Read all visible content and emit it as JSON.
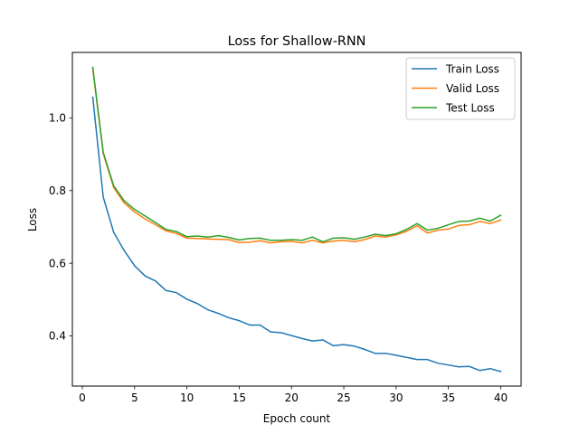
{
  "chart_data": {
    "type": "line",
    "title": "Loss for Shallow-RNN",
    "xlabel": "Epoch count",
    "ylabel": "Loss",
    "xlim": [
      -0.95,
      41.95
    ],
    "ylim": [
      0.262,
      1.18
    ],
    "xticks": [
      0,
      5,
      10,
      15,
      20,
      25,
      30,
      35,
      40
    ],
    "yticks": [
      0.4,
      0.6,
      0.8,
      1.0
    ],
    "grid": false,
    "legend_position": "top-right",
    "x": [
      1,
      2,
      3,
      4,
      5,
      6,
      7,
      8,
      9,
      10,
      11,
      12,
      13,
      14,
      15,
      16,
      17,
      18,
      19,
      20,
      21,
      22,
      23,
      24,
      25,
      26,
      27,
      28,
      29,
      30,
      31,
      32,
      33,
      34,
      35,
      36,
      37,
      38,
      39,
      40
    ],
    "series": [
      {
        "name": "Train Loss",
        "color": "#1f77b4",
        "values": [
          1.057,
          0.782,
          0.685,
          0.635,
          0.593,
          0.565,
          0.551,
          0.525,
          0.519,
          0.501,
          0.489,
          0.472,
          0.462,
          0.45,
          0.442,
          0.43,
          0.43,
          0.411,
          0.409,
          0.401,
          0.393,
          0.386,
          0.389,
          0.373,
          0.376,
          0.372,
          0.363,
          0.352,
          0.352,
          0.347,
          0.341,
          0.335,
          0.335,
          0.325,
          0.32,
          0.315,
          0.316,
          0.305,
          0.31,
          0.302
        ]
      },
      {
        "name": "Valid Loss",
        "color": "#ff7f0e",
        "values": [
          1.135,
          0.902,
          0.808,
          0.766,
          0.741,
          0.722,
          0.706,
          0.689,
          0.682,
          0.669,
          0.668,
          0.667,
          0.666,
          0.665,
          0.657,
          0.658,
          0.662,
          0.656,
          0.659,
          0.66,
          0.656,
          0.663,
          0.656,
          0.661,
          0.663,
          0.659,
          0.665,
          0.675,
          0.672,
          0.678,
          0.688,
          0.703,
          0.683,
          0.691,
          0.694,
          0.704,
          0.706,
          0.715,
          0.709,
          0.719
        ]
      },
      {
        "name": "Test Loss",
        "color": "#2ca02c",
        "values": [
          1.139,
          0.905,
          0.813,
          0.772,
          0.748,
          0.73,
          0.712,
          0.693,
          0.687,
          0.673,
          0.675,
          0.672,
          0.676,
          0.671,
          0.664,
          0.668,
          0.669,
          0.663,
          0.663,
          0.665,
          0.663,
          0.672,
          0.659,
          0.669,
          0.67,
          0.666,
          0.672,
          0.68,
          0.676,
          0.681,
          0.693,
          0.709,
          0.691,
          0.696,
          0.706,
          0.715,
          0.716,
          0.724,
          0.716,
          0.732
        ]
      }
    ]
  }
}
